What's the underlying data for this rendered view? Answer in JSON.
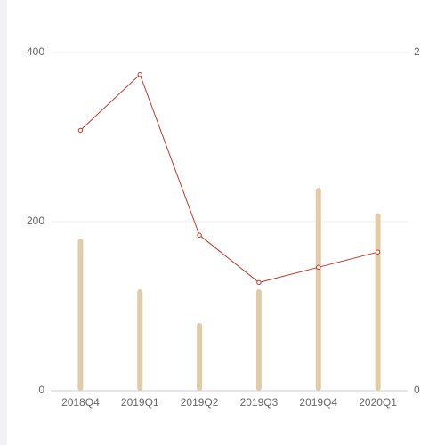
{
  "chart_data": {
    "type": "bar-line",
    "categories": [
      "2018Q4",
      "2019Q1",
      "2019Q2",
      "2019Q3",
      "2019Q4",
      "2020Q1"
    ],
    "series": [
      {
        "type": "bar",
        "color": "#e2cca8",
        "values": [
          180,
          120,
          80,
          120,
          240,
          210
        ]
      },
      {
        "type": "line",
        "axis": "y2",
        "color": "#c0392b",
        "values": [
          1.54,
          1.87,
          0.92,
          0.64,
          0.73,
          0.82
        ]
      }
    ],
    "ylim": [
      0,
      400
    ],
    "yticks": [
      0,
      200,
      400
    ],
    "y2lim": [
      0,
      2
    ],
    "y2ticks": [
      0,
      2
    ],
    "grid": true
  }
}
